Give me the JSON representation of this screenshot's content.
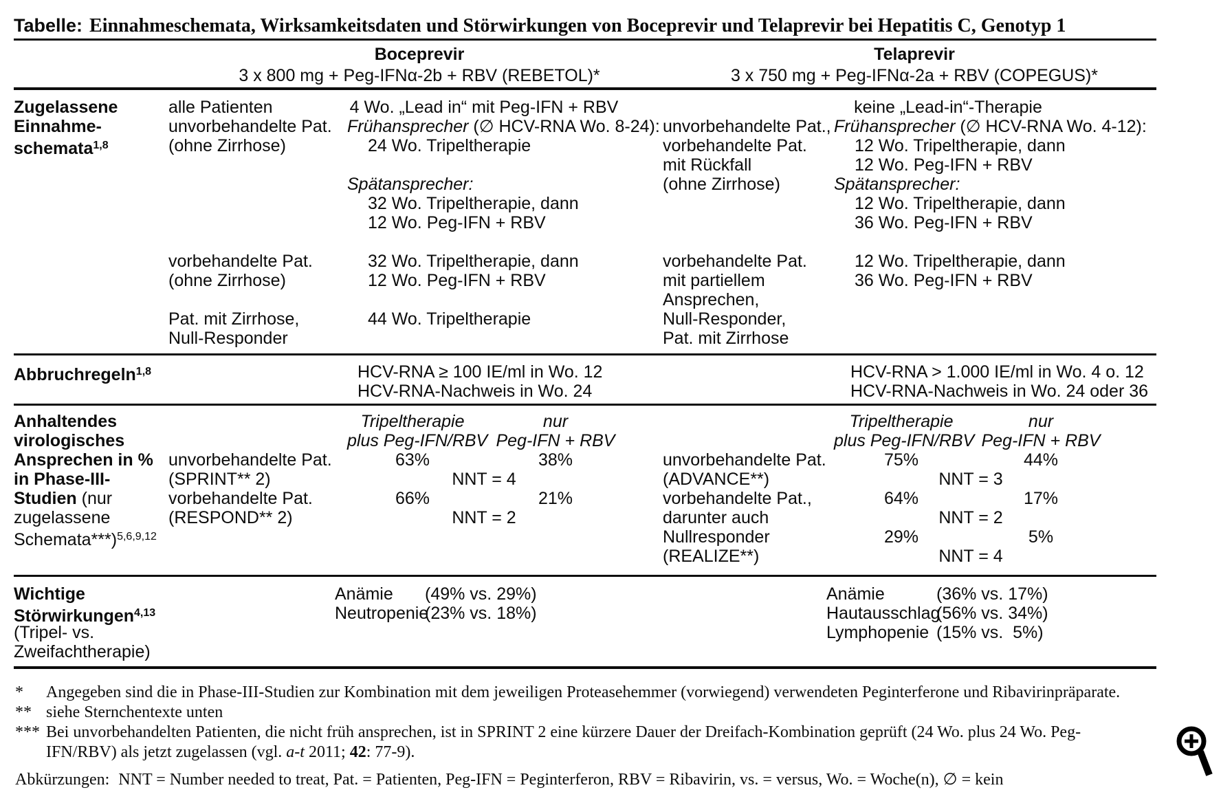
{
  "title": {
    "prefix": "Tabelle:",
    "text": "Einnahmeschemata, Wirksamkeitsdaten und Störwirkungen von Boceprevir und Telaprevir bei Hepatitis C, Genotyp 1"
  },
  "columns": {
    "boceprevir": {
      "name": "Boceprevir",
      "regimen": "3 x 800 mg + Peg-IFNα-2b + RBV (REBETOL)*"
    },
    "telaprevir": {
      "name": "Telaprevir",
      "regimen": "3 x 750 mg + Peg-IFNα-2a + RBV (COPEGUS)*"
    }
  },
  "sections": {
    "einnahme": {
      "label": [
        "[[b]]Zugelassene[[/b]]",
        "[[b]]Einnahme-[[/b]]",
        "[[b]]schemata[[sup]]1,8[[/sup]][[/b]]"
      ],
      "boc_all_patients": "4 Wo. „Lead in“ mit Peg-IFN + RBV",
      "tel_all_patients": "keine „Lead-in“-Therapie",
      "boc_patient": [
        "alle Patienten",
        "unvorbehandelte Pat.",
        "(ohne Zirrhose)",
        "",
        "",
        "",
        "",
        "",
        "vorbehandelte Pat.",
        "(ohne Zirrhose)",
        "",
        "Pat. mit Zirrhose,",
        "Null-Responder"
      ],
      "boc_detail": [
        "",
        "[[i]]Frühansprecher[[/i]] (∅ HCV-RNA Wo. 8-24):",
        "[[ind]]24 Wo. Tripeltherapie",
        "",
        "[[i]]Spätansprecher:[[/i]]",
        "[[ind]]32 Wo. Tripeltherapie, dann",
        "[[ind]]12 Wo. Peg-IFN + RBV",
        "",
        "[[ind]]32 Wo. Tripeltherapie, dann",
        "[[ind]]12 Wo. Peg-IFN + RBV",
        "",
        "[[ind]]44 Wo. Tripeltherapie",
        ""
      ],
      "tel_patient": [
        "",
        "unvorbehandelte Pat.,",
        "vorbehandelte Pat.",
        "mit Rückfall",
        "(ohne Zirrhose)",
        "",
        "",
        "",
        "vorbehandelte Pat.",
        "mit partiellem",
        "Ansprechen,",
        "Null-Responder,",
        "Pat. mit Zirrhose"
      ],
      "tel_detail": [
        "",
        "[[i]]Frühansprecher[[/i]] (∅ HCV-RNA Wo. 4-12):",
        "[[ind]]12 Wo. Tripeltherapie, dann",
        "[[ind]]12 Wo. Peg-IFN + RBV",
        "[[i]]Spätansprecher:[[/i]]",
        "[[ind]]12 Wo. Tripeltherapie, dann",
        "[[ind]]36 Wo. Peg-IFN + RBV",
        "",
        "[[ind]]12 Wo. Tripeltherapie, dann",
        "[[ind]]36 Wo. Peg-IFN + RBV",
        "",
        "",
        ""
      ]
    },
    "abbruch": {
      "label": [
        "[[b]]Abbruchregeln[[sup]]1,8[[/sup]][[/b]]"
      ],
      "boc": [
        "HCV-RNA ≥ 100 IE/ml in Wo. 12",
        "HCV-RNA-Nachweis in Wo. 24"
      ],
      "tel": [
        "HCV-RNA > 1.000 IE/ml in Wo. 4 o. 12",
        "HCV-RNA-Nachweis in Wo. 24 oder 36"
      ]
    },
    "svr": {
      "label": [
        "[[b]]Anhaltendes[[/b]]",
        "[[b]]virologisches[[/b]]",
        "[[b]]Ansprechen in %[[/b]]",
        "[[b]]in Phase-III-[[/b]]",
        "[[b]]Studien[[/b]] (nur",
        "zugelassene",
        "Schemata***)[[sup]]5,6,9,12[[/sup]]"
      ],
      "boc_patient": [
        "",
        "",
        "unvorbehandelte Pat.",
        "(SPRINT** 2)",
        "vorbehandelte Pat.",
        "(RESPOND** 2)",
        "",
        ""
      ],
      "boc_triple": [
        "[[i]]Tripeltherapie[[/i]]",
        "[[i]]plus Peg-IFN/RBV[[/i]]",
        "63%",
        "",
        "66%",
        "",
        "",
        ""
      ],
      "boc_dual": [
        "[[i]]nur[[/i]]",
        "[[i]]Peg-IFN + RBV[[/i]]",
        "38%",
        "",
        "21%",
        "",
        "",
        ""
      ],
      "boc_nnt": [
        "",
        "",
        "",
        "NNT = 4",
        "",
        "NNT = 2",
        "",
        ""
      ],
      "tel_patient": [
        "",
        "",
        "unvorbehandelte Pat.",
        "(ADVANCE**)",
        "vorbehandelte Pat.,",
        "darunter auch",
        "Nullresponder",
        "(REALIZE**)"
      ],
      "tel_triple": [
        "[[i]]Tripeltherapie[[/i]]",
        "[[i]]plus Peg-IFN/RBV[[/i]]",
        "75%",
        "",
        "64%",
        "",
        "29%",
        ""
      ],
      "tel_dual": [
        "[[i]]nur[[/i]]",
        "[[i]]Peg-IFN + RBV[[/i]]",
        "44%",
        "",
        "17%",
        "",
        "5%",
        ""
      ],
      "tel_nnt": [
        "",
        "",
        "",
        "NNT = 3",
        "",
        "NNT = 2",
        "",
        "NNT = 4"
      ]
    },
    "stoerwirkungen": {
      "label": [
        "[[b]]Wichtige[[/b]]",
        "[[b]]Störwirkungen[[sup]]4,13[[/sup]][[/b]]",
        "(Tripel- vs.",
        "Zweifachtherapie)"
      ],
      "boc_names": [
        "Anämie",
        "Neutropenie"
      ],
      "boc_values": [
        "(49% vs. 29%)",
        "(23% vs. 18%)"
      ],
      "tel_names": [
        "Anämie",
        "Hautausschlag",
        "Lymphopenie"
      ],
      "tel_values": [
        "(36% vs. 17%)",
        "(56% vs. 34%)",
        "(15% vs.  5%)"
      ]
    }
  },
  "footnotes": [
    {
      "marker": "*",
      "text": "Angegeben sind die in Phase-III-Studien zur Kombination mit dem jeweiligen Proteasehemmer (vorwiegend) verwendeten Peginterferone und Ribavirinpräparate."
    },
    {
      "marker": "**",
      "text": "siehe Sternchentexte unten"
    },
    {
      "marker": "***",
      "text": "Bei unvorbehandelten Patienten, die nicht früh ansprechen, ist in SPRINT 2 eine kürzere Dauer der Dreifach-Kombination geprüft (24 Wo. plus 24 Wo. Peg-"
    },
    {
      "marker": "",
      "text": "IFN/RBV) als jetzt zugelassen (vgl. [[i]]a-t[[/i]] 2011; [[b]]42[[/b]]: 77-9)."
    }
  ],
  "abbreviations": {
    "label": "Abkürzungen:",
    "text": "NNT = Number needed to treat, Pat. = Patienten, Peg-IFN = Peginterferon, RBV = Ribavirin, vs. = versus, Wo. = Woche(n), ∅ = kein"
  },
  "icons": {
    "zoom": "magnifier-plus-icon"
  },
  "colors": {
    "ink": "#0c0c0c",
    "background": "#ffffff"
  }
}
